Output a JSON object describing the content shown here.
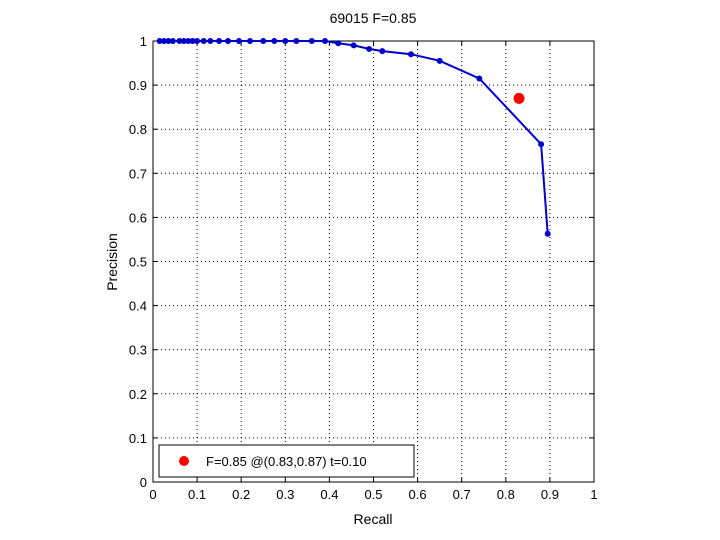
{
  "chart_data": {
    "type": "line",
    "title": "69015 F=0.85",
    "xlabel": "Recall",
    "ylabel": "Precision",
    "xlim": [
      0,
      1
    ],
    "ylim": [
      0,
      1
    ],
    "xticks": [
      "0",
      "0.1",
      "0.2",
      "0.3",
      "0.4",
      "0.5",
      "0.6",
      "0.7",
      "0.8",
      "0.9",
      "1"
    ],
    "yticks": [
      "0",
      "0.1",
      "0.2",
      "0.3",
      "0.4",
      "0.5",
      "0.6",
      "0.7",
      "0.8",
      "0.9",
      "1"
    ],
    "grid": true,
    "legend_position": "bottom-left",
    "series": [
      {
        "color": "#0000cc",
        "x": [
          0.015,
          0.025,
          0.035,
          0.045,
          0.06,
          0.07,
          0.08,
          0.09,
          0.1,
          0.115,
          0.13,
          0.15,
          0.17,
          0.195,
          0.22,
          0.25,
          0.275,
          0.3,
          0.325,
          0.36,
          0.39,
          0.42,
          0.455,
          0.49,
          0.52,
          0.585,
          0.65,
          0.74,
          0.88,
          0.895
        ],
        "y": [
          1.0,
          1.0,
          1.0,
          1.0,
          1.0,
          1.0,
          1.0,
          1.0,
          1.0,
          1.0,
          1.0,
          1.0,
          1.0,
          1.0,
          1.0,
          1.0,
          1.0,
          1.0,
          1.0,
          1.0,
          1.0,
          0.995,
          0.99,
          0.982,
          0.977,
          0.97,
          0.955,
          0.915,
          0.766,
          0.563
        ]
      }
    ],
    "highlight": {
      "x": 0.83,
      "y": 0.87,
      "color": "#ff0000"
    },
    "legend": [
      {
        "label": "F=0.85 @(0.83,0.87) t=0.10",
        "color": "#ff0000"
      }
    ]
  }
}
